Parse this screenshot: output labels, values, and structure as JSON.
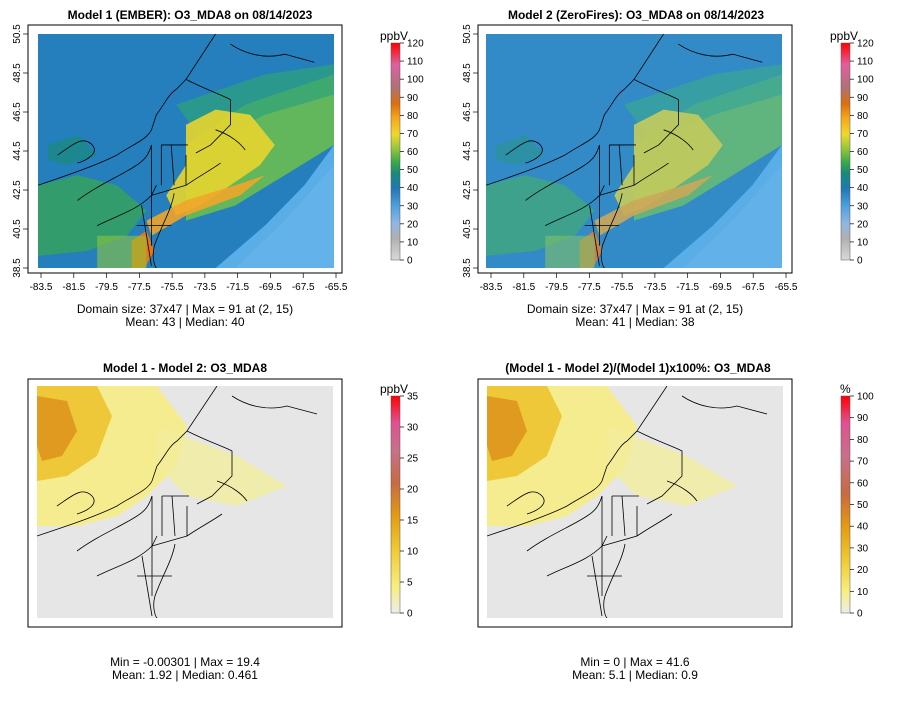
{
  "panels": [
    {
      "title": "Model 1 (EMBER): O3_MDA8 on 08/14/2023",
      "kind": "abs",
      "x_ticks": [
        "-83.5",
        "-81.5",
        "-79.5",
        "-77.5",
        "-75.5",
        "-73.5",
        "-71.5",
        "-69.5",
        "-67.5",
        "-65.5"
      ],
      "y_ticks": [
        "38.5",
        "40.5",
        "42.5",
        "44.5",
        "46.5",
        "48.5",
        "50.5"
      ],
      "colorbar": {
        "unit": "ppbV",
        "ticks": [
          0,
          10,
          20,
          30,
          40,
          50,
          60,
          70,
          80,
          90,
          100,
          110,
          120
        ]
      },
      "stats": [
        "Domain size: 37x47 | Max = 91 at (2, 15)",
        "Mean: 43 |  Median: 40"
      ]
    },
    {
      "title": "Model 2 (ZeroFires): O3_MDA8 on 08/14/2023",
      "kind": "abs",
      "x_ticks": [
        "-83.5",
        "-81.5",
        "-79.5",
        "-77.5",
        "-75.5",
        "-73.5",
        "-71.5",
        "-69.5",
        "-67.5",
        "-65.5"
      ],
      "y_ticks": [
        "38.5",
        "40.5",
        "42.5",
        "44.5",
        "46.5",
        "48.5",
        "50.5"
      ],
      "colorbar": {
        "unit": "ppbV",
        "ticks": [
          0,
          10,
          20,
          30,
          40,
          50,
          60,
          70,
          80,
          90,
          100,
          110,
          120
        ]
      },
      "stats": [
        "Domain size: 37x47 | Max = 91 at (2, 15)",
        "Mean: 41 |  Median: 38"
      ]
    },
    {
      "title": "Model 1 - Model 2: O3_MDA8",
      "kind": "diff",
      "colorbar": {
        "unit": "ppbV",
        "ticks": [
          0,
          5,
          10,
          15,
          20,
          25,
          30,
          35
        ]
      },
      "stats": [
        "Min = -0.00301 | Max = 19.4",
        "Mean: 1.92 |  Median: 0.461"
      ]
    },
    {
      "title": "(Model 1 - Model 2)/(Model 1)x100%: O3_MDA8",
      "kind": "pct",
      "colorbar": {
        "unit": "%",
        "ticks": [
          0,
          10,
          20,
          30,
          40,
          50,
          60,
          70,
          80,
          90,
          100
        ]
      },
      "stats": [
        "Min = 0 | Max = 41.6",
        "Mean: 5.1 |  Median: 0.9"
      ]
    }
  ],
  "colors": {
    "abs_scale": [
      "#c8c8c8",
      "#8fb7e3",
      "#4c9fdf",
      "#1f78b4",
      "#1a8a7a",
      "#3aa84a",
      "#9cc93a",
      "#f0d82b",
      "#f5a21a",
      "#e8731a",
      "#c46a7a",
      "#e25a8e",
      "#ff0000"
    ],
    "diff_scale": [
      "#e6e6e6",
      "#f5e96a",
      "#f0c830",
      "#eaa41a",
      "#d9800e",
      "#c86a7a",
      "#e05090",
      "#ff0000"
    ]
  }
}
